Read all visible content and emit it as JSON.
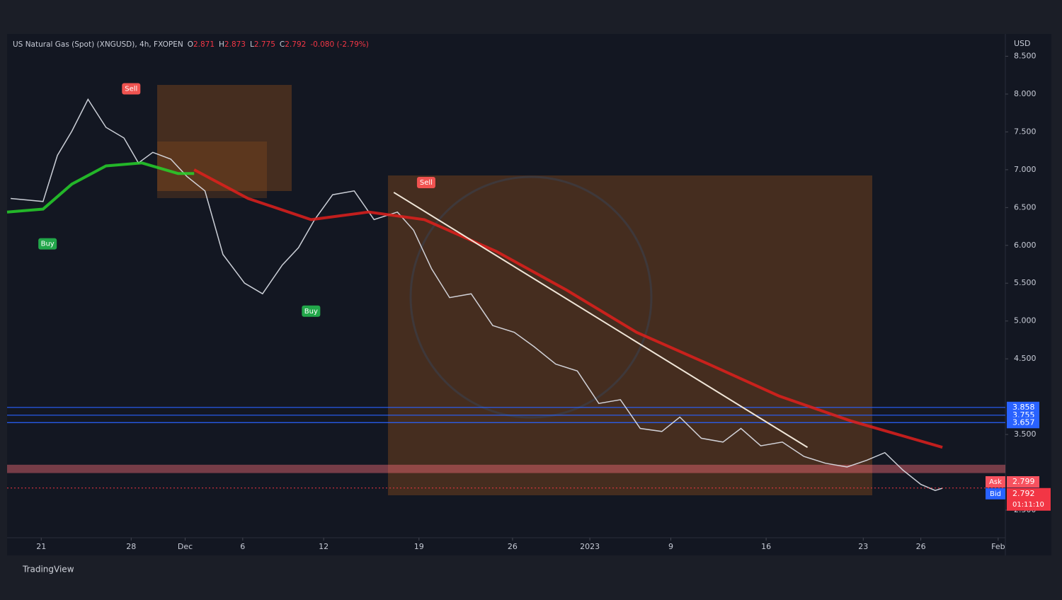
{
  "chart_data": {
    "type": "line",
    "title": "US Natural Gas (Spot) (XNGUSD), 4h, FXOPEN",
    "ohlc": [
      {
        "label": "O",
        "text": "2.871"
      },
      {
        "label": "H",
        "text": "2.873"
      },
      {
        "label": "L",
        "text": "2.775"
      },
      {
        "label": "C",
        "text": "2.792"
      }
    ],
    "change": "-0.080 (-2.79%)",
    "y_unit": "USD",
    "brand": "TradingView",
    "xlim": [
      -1.9,
      53.6
    ],
    "ylim": [
      2.135,
      8.776
    ],
    "xticks": [
      {
        "value": 0,
        "label": "21"
      },
      {
        "value": 5,
        "label": "28"
      },
      {
        "value": 8,
        "label": "Dec"
      },
      {
        "value": 11.2,
        "label": "6"
      },
      {
        "value": 15.7,
        "label": "12"
      },
      {
        "value": 21,
        "label": "19"
      },
      {
        "value": 26.2,
        "label": "26"
      },
      {
        "value": 30.5,
        "label": "2023"
      },
      {
        "value": 35,
        "label": "9"
      },
      {
        "value": 40.3,
        "label": "16"
      },
      {
        "value": 45.7,
        "label": "23"
      },
      {
        "value": 48.9,
        "label": "26"
      },
      {
        "value": 53.2,
        "label": "Feb"
      }
    ],
    "yticks": [
      {
        "value": 8.5,
        "label": "8.500"
      },
      {
        "value": 8,
        "label": "8.000"
      },
      {
        "value": 7.5,
        "label": "7.500"
      },
      {
        "value": 7,
        "label": "7.000"
      },
      {
        "value": 6.5,
        "label": "6.500"
      },
      {
        "value": 6,
        "label": "6.000"
      },
      {
        "value": 5.5,
        "label": "5.500"
      },
      {
        "value": 5,
        "label": "5.000"
      },
      {
        "value": 4.5,
        "label": "4.500"
      },
      {
        "value": 3.5,
        "label": "3.500"
      },
      {
        "value": 2.5,
        "label": "2.500"
      }
    ],
    "series": [
      {
        "name": "Close",
        "color": "#e0e3eb",
        "x": [
          -1.7,
          0.1,
          0.9,
          1.7,
          2.6,
          3.6,
          4.6,
          5.4,
          6.2,
          7.2,
          8.1,
          9.1,
          10.1,
          11.3,
          12.3,
          13.4,
          14.3,
          15.2,
          16.2,
          17.4,
          18.5,
          19.8,
          20.7,
          21.7,
          22.7,
          23.9,
          25.1,
          26.3,
          27.4,
          28.6,
          29.8,
          31.0,
          32.2,
          33.3,
          34.5,
          35.5,
          36.7,
          37.9,
          38.9,
          40.0,
          41.2,
          42.4,
          43.6,
          44.8,
          45.9,
          46.9,
          47.9,
          48.9,
          49.7,
          50.1
        ],
        "values": [
          6.62,
          6.58,
          7.19,
          7.51,
          7.93,
          7.56,
          7.42,
          7.09,
          7.23,
          7.14,
          6.91,
          6.72,
          5.88,
          5.5,
          5.36,
          5.74,
          5.97,
          6.34,
          6.67,
          6.72,
          6.34,
          6.44,
          6.2,
          5.69,
          5.31,
          5.36,
          4.94,
          4.85,
          4.66,
          4.43,
          4.34,
          3.91,
          3.96,
          3.58,
          3.54,
          3.73,
          3.45,
          3.4,
          3.58,
          3.35,
          3.4,
          3.21,
          3.12,
          3.07,
          3.16,
          3.26,
          3.03,
          2.84,
          2.76,
          2.79
        ]
      },
      {
        "name": "Slow MA",
        "color": "#e0201c",
        "x": [
          8.5,
          11.5,
          15.0,
          18.2,
          21.3,
          25.3,
          29.2,
          33.1,
          37.1,
          41.0,
          45.0,
          50.1
        ],
        "values": [
          7.0,
          6.62,
          6.34,
          6.44,
          6.34,
          5.92,
          5.41,
          4.85,
          4.43,
          4.01,
          3.68,
          3.33
        ]
      },
      {
        "name": "Fast MA",
        "color": "#27d22a",
        "x": [
          -1.9,
          0.1,
          1.7,
          3.6,
          5.6,
          7.6,
          8.5
        ],
        "values": [
          6.44,
          6.48,
          6.81,
          7.05,
          7.09,
          6.95,
          6.95
        ]
      }
    ],
    "trendline": {
      "x": [
        19.6,
        42.6
      ],
      "values": [
        6.7,
        3.33
      ],
      "color": "#f0e6d8"
    },
    "signals": [
      {
        "label": "Sell",
        "x": 5.0,
        "y": 8.07,
        "color": "#f05350"
      },
      {
        "label": "Buy",
        "x": 0.35,
        "y": 6.02,
        "color": "#22a74a"
      },
      {
        "label": "Buy",
        "x": 15.0,
        "y": 5.13,
        "color": "#22a74a"
      },
      {
        "label": "Sell",
        "x": 21.4,
        "y": 6.83,
        "color": "#f05350"
      }
    ],
    "levels": [
      {
        "value": 3.858,
        "color": "#2962ff"
      },
      {
        "value": 3.755,
        "color": "#2962ff"
      },
      {
        "value": 3.657,
        "color": "#2962ff"
      }
    ],
    "zone": [
      2.99,
      3.1
    ],
    "quotes": [
      {
        "label": "Ask",
        "value": 2.799,
        "color": "#f7525f"
      },
      {
        "label": "Bid",
        "value": 2.792,
        "color": "#2962ff"
      }
    ],
    "last_price": {
      "value": 2.792,
      "countdown": "01:11:10",
      "color": "#f23645"
    }
  }
}
